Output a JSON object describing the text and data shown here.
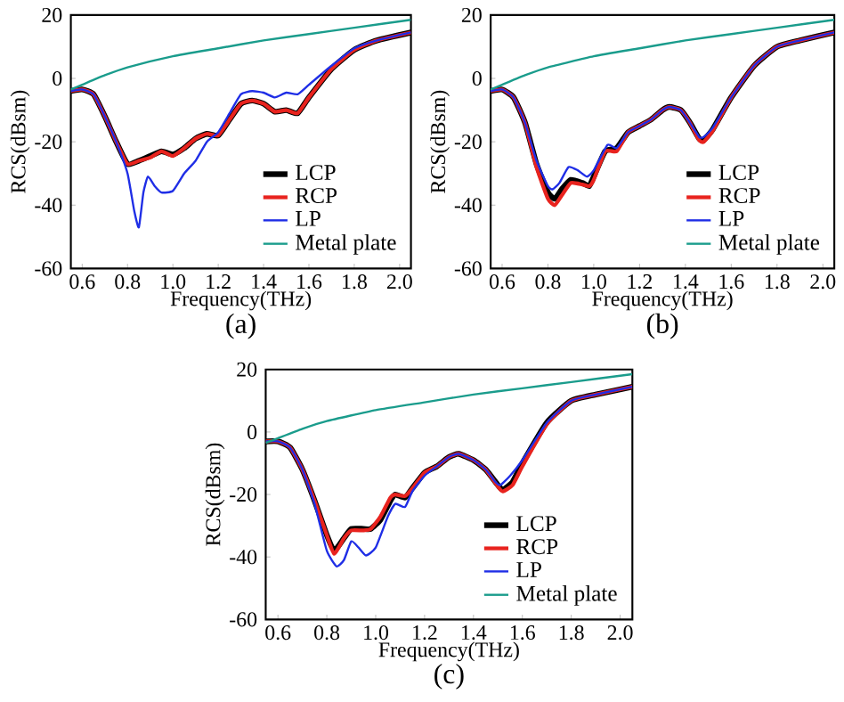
{
  "chart_data": [
    {
      "type": "line",
      "title": "(a)",
      "xlabel": "Frequency(THz)",
      "ylabel": "RCS(dBsm)",
      "xlim": [
        0.55,
        2.05
      ],
      "ylim": [
        -60,
        20
      ],
      "legend": "bottom right",
      "xticks": [
        {
          "value": 0.6,
          "label": "0.6"
        },
        {
          "value": 0.8,
          "label": "0.8"
        },
        {
          "value": 1.0,
          "label": "1.0"
        },
        {
          "value": 1.2,
          "label": "1.2"
        },
        {
          "value": 1.4,
          "label": "1.4"
        },
        {
          "value": 1.6,
          "label": "1.6"
        },
        {
          "value": 1.8,
          "label": "1.8"
        },
        {
          "value": 2.0,
          "label": "2.0"
        }
      ],
      "yticks": [
        -60,
        -40,
        -20,
        0,
        20
      ],
      "series": [
        {
          "name": "LCP",
          "color": "#000000",
          "x": [
            0.55,
            0.6,
            0.65,
            0.7,
            0.75,
            0.8,
            0.85,
            0.9,
            0.95,
            1.0,
            1.05,
            1.1,
            1.15,
            1.2,
            1.25,
            1.3,
            1.35,
            1.4,
            1.45,
            1.5,
            1.55,
            1.6,
            1.7,
            1.8,
            1.9,
            2.05
          ],
          "values": [
            -4,
            -3.5,
            -5,
            -12,
            -20,
            -27,
            -26,
            -24.5,
            -23,
            -24,
            -22,
            -19,
            -17.5,
            -18,
            -13,
            -8,
            -7,
            -8,
            -10.5,
            -10,
            -11,
            -6,
            3,
            9,
            12,
            14.5
          ]
        },
        {
          "name": "RCP",
          "color": "#e8231e",
          "x": [
            0.55,
            0.6,
            0.65,
            0.7,
            0.75,
            0.8,
            0.85,
            0.9,
            0.95,
            1.0,
            1.05,
            1.1,
            1.15,
            1.2,
            1.25,
            1.3,
            1.35,
            1.4,
            1.45,
            1.5,
            1.55,
            1.6,
            1.7,
            1.8,
            1.9,
            2.05
          ],
          "values": [
            -4,
            -3.5,
            -5,
            -12,
            -20,
            -27,
            -26,
            -25,
            -23,
            -24.5,
            -22,
            -19,
            -17.5,
            -18,
            -13,
            -8,
            -7,
            -8,
            -10.5,
            -10,
            -11,
            -6,
            3,
            9,
            12,
            14.5
          ]
        },
        {
          "name": "LP",
          "color": "#1f2ee6",
          "x": [
            0.55,
            0.6,
            0.65,
            0.7,
            0.75,
            0.8,
            0.83,
            0.85,
            0.87,
            0.89,
            0.92,
            0.95,
            1.0,
            1.05,
            1.1,
            1.15,
            1.2,
            1.25,
            1.3,
            1.35,
            1.4,
            1.45,
            1.5,
            1.55,
            1.6,
            1.7,
            1.8,
            1.9,
            2.05
          ],
          "values": [
            -4,
            -3.5,
            -5,
            -12,
            -20,
            -30,
            -42,
            -47,
            -36,
            -31,
            -34,
            -36,
            -35.5,
            -30,
            -26,
            -20,
            -17,
            -11,
            -5,
            -4,
            -4.5,
            -6,
            -4.5,
            -5,
            -2,
            4,
            9.5,
            12,
            14.5
          ]
        },
        {
          "name": "Metal plate",
          "color": "#1a9c8c",
          "x": [
            0.55,
            0.6,
            0.7,
            0.8,
            1.0,
            1.2,
            1.4,
            1.6,
            1.8,
            2.05
          ],
          "values": [
            -3.5,
            -2,
            1,
            3.5,
            7,
            9.5,
            12,
            14,
            16,
            18.5
          ]
        }
      ]
    },
    {
      "type": "line",
      "title": "(b)",
      "xlabel": "Frequency(THz)",
      "ylabel": "RCS(dBsm)",
      "xlim": [
        0.55,
        2.05
      ],
      "ylim": [
        -60,
        20
      ],
      "legend": "bottom right",
      "xticks": [
        {
          "value": 0.6,
          "label": "0.6"
        },
        {
          "value": 0.8,
          "label": "0.8"
        },
        {
          "value": 1.0,
          "label": "1.0"
        },
        {
          "value": 1.2,
          "label": "1.2"
        },
        {
          "value": 1.4,
          "label": "1.4"
        },
        {
          "value": 1.6,
          "label": "1.6"
        },
        {
          "value": 1.8,
          "label": "1.8"
        },
        {
          "value": 2.0,
          "label": "2.0"
        }
      ],
      "yticks": [
        -60,
        -40,
        -20,
        0,
        20
      ],
      "series": [
        {
          "name": "LCP",
          "color": "#000000",
          "x": [
            0.55,
            0.6,
            0.65,
            0.7,
            0.75,
            0.8,
            0.83,
            0.86,
            0.9,
            0.95,
            0.98,
            1.0,
            1.05,
            1.1,
            1.15,
            1.2,
            1.25,
            1.3,
            1.33,
            1.38,
            1.42,
            1.46,
            1.48,
            1.52,
            1.6,
            1.7,
            1.8,
            1.9,
            2.05
          ],
          "values": [
            -4,
            -3.5,
            -6,
            -14,
            -27,
            -36,
            -38,
            -35,
            -32,
            -33,
            -34,
            -31,
            -23,
            -22,
            -17,
            -15,
            -13,
            -10,
            -9,
            -10,
            -14,
            -19,
            -19.5,
            -16,
            -6,
            4,
            10,
            12,
            14.5
          ]
        },
        {
          "name": "RCP",
          "color": "#e8231e",
          "x": [
            0.55,
            0.6,
            0.65,
            0.7,
            0.75,
            0.8,
            0.83,
            0.86,
            0.9,
            0.95,
            0.98,
            1.0,
            1.05,
            1.1,
            1.15,
            1.2,
            1.25,
            1.3,
            1.33,
            1.38,
            1.42,
            1.46,
            1.48,
            1.52,
            1.6,
            1.7,
            1.8,
            1.9,
            2.05
          ],
          "values": [
            -4,
            -3.5,
            -6,
            -14,
            -28,
            -38,
            -40,
            -37,
            -33,
            -33.5,
            -34,
            -32,
            -23,
            -23,
            -17,
            -15,
            -13,
            -10,
            -9,
            -10,
            -14,
            -19.5,
            -20,
            -16.5,
            -6,
            4,
            10,
            12,
            14.5
          ]
        },
        {
          "name": "LP",
          "color": "#1f2ee6",
          "x": [
            0.55,
            0.6,
            0.65,
            0.7,
            0.75,
            0.8,
            0.82,
            0.85,
            0.89,
            0.93,
            0.97,
            1.0,
            1.06,
            1.1,
            1.15,
            1.2,
            1.25,
            1.3,
            1.33,
            1.38,
            1.42,
            1.46,
            1.48,
            1.52,
            1.6,
            1.7,
            1.8,
            1.9,
            2.05
          ],
          "values": [
            -4,
            -3.5,
            -6,
            -14,
            -26,
            -34,
            -35,
            -33,
            -28,
            -29,
            -31,
            -29,
            -21,
            -22,
            -17,
            -15,
            -13,
            -10,
            -9,
            -10,
            -14,
            -18.5,
            -18.5,
            -15.5,
            -6,
            4,
            10,
            12,
            14.5
          ]
        },
        {
          "name": "Metal plate",
          "color": "#1a9c8c",
          "x": [
            0.55,
            0.6,
            0.7,
            0.8,
            1.0,
            1.2,
            1.4,
            1.6,
            1.8,
            2.05
          ],
          "values": [
            -3.5,
            -2,
            1,
            3.5,
            7,
            9.5,
            12,
            14,
            16,
            18.5
          ]
        }
      ]
    },
    {
      "type": "line",
      "title": "(c)",
      "xlabel": "Frequency(THz)",
      "ylabel": "RCS(dBsm)",
      "xlim": [
        0.55,
        2.05
      ],
      "ylim": [
        -60,
        20
      ],
      "legend": "bottom right",
      "xticks": [
        {
          "value": 0.6,
          "label": "0.6"
        },
        {
          "value": 0.8,
          "label": "0.8"
        },
        {
          "value": 1.0,
          "label": "1.0"
        },
        {
          "value": 1.2,
          "label": "1.2"
        },
        {
          "value": 1.4,
          "label": "1.4"
        },
        {
          "value": 1.6,
          "label": "1.6"
        },
        {
          "value": 1.8,
          "label": "1.8"
        },
        {
          "value": 2.0,
          "label": "2.0"
        }
      ],
      "yticks": [
        -60,
        -40,
        -20,
        0,
        20
      ],
      "series": [
        {
          "name": "LCP",
          "color": "#000000",
          "x": [
            0.55,
            0.6,
            0.65,
            0.7,
            0.75,
            0.8,
            0.83,
            0.87,
            0.9,
            0.95,
            0.98,
            1.02,
            1.06,
            1.08,
            1.12,
            1.15,
            1.2,
            1.25,
            1.3,
            1.34,
            1.4,
            1.45,
            1.5,
            1.52,
            1.56,
            1.6,
            1.7,
            1.8,
            1.9,
            2.05
          ],
          "values": [
            -3,
            -3,
            -5,
            -12,
            -22,
            -33,
            -38,
            -34,
            -31,
            -31,
            -31,
            -28,
            -22,
            -20,
            -21,
            -18,
            -13,
            -11,
            -8,
            -7,
            -9,
            -12,
            -17,
            -18.5,
            -16,
            -10,
            3,
            10,
            12,
            14.5
          ]
        },
        {
          "name": "RCP",
          "color": "#e8231e",
          "x": [
            0.55,
            0.6,
            0.65,
            0.7,
            0.75,
            0.8,
            0.83,
            0.87,
            0.9,
            0.95,
            0.98,
            1.02,
            1.06,
            1.08,
            1.12,
            1.15,
            1.2,
            1.25,
            1.3,
            1.34,
            1.4,
            1.45,
            1.5,
            1.52,
            1.56,
            1.6,
            1.7,
            1.8,
            1.9,
            2.05
          ],
          "values": [
            -3,
            -3,
            -5,
            -12,
            -22,
            -33,
            -39,
            -34,
            -31.5,
            -31.5,
            -31,
            -27,
            -21,
            -20,
            -20.5,
            -18,
            -13,
            -11,
            -8,
            -7,
            -9,
            -12,
            -17.5,
            -19,
            -17,
            -11,
            2.5,
            10,
            12,
            14.5
          ]
        },
        {
          "name": "LP",
          "color": "#1f2ee6",
          "x": [
            0.55,
            0.6,
            0.65,
            0.7,
            0.75,
            0.8,
            0.84,
            0.87,
            0.9,
            0.93,
            0.96,
            1.0,
            1.05,
            1.08,
            1.12,
            1.15,
            1.2,
            1.25,
            1.3,
            1.34,
            1.4,
            1.45,
            1.49,
            1.51,
            1.55,
            1.6,
            1.7,
            1.8,
            1.9,
            2.05
          ],
          "values": [
            -3,
            -3,
            -5,
            -12,
            -23,
            -38,
            -43,
            -41,
            -35,
            -37,
            -39.5,
            -37,
            -27,
            -23,
            -24,
            -19,
            -14,
            -11,
            -8,
            -7,
            -9,
            -12,
            -16,
            -17,
            -14,
            -9,
            3,
            10,
            12,
            14.5
          ]
        },
        {
          "name": "Metal plate",
          "color": "#1a9c8c",
          "x": [
            0.55,
            0.6,
            0.7,
            0.8,
            1.0,
            1.2,
            1.4,
            1.6,
            1.8,
            2.05
          ],
          "values": [
            -3.5,
            -2,
            1,
            3.5,
            7,
            9.5,
            12,
            14,
            16,
            18.5
          ]
        }
      ]
    }
  ]
}
